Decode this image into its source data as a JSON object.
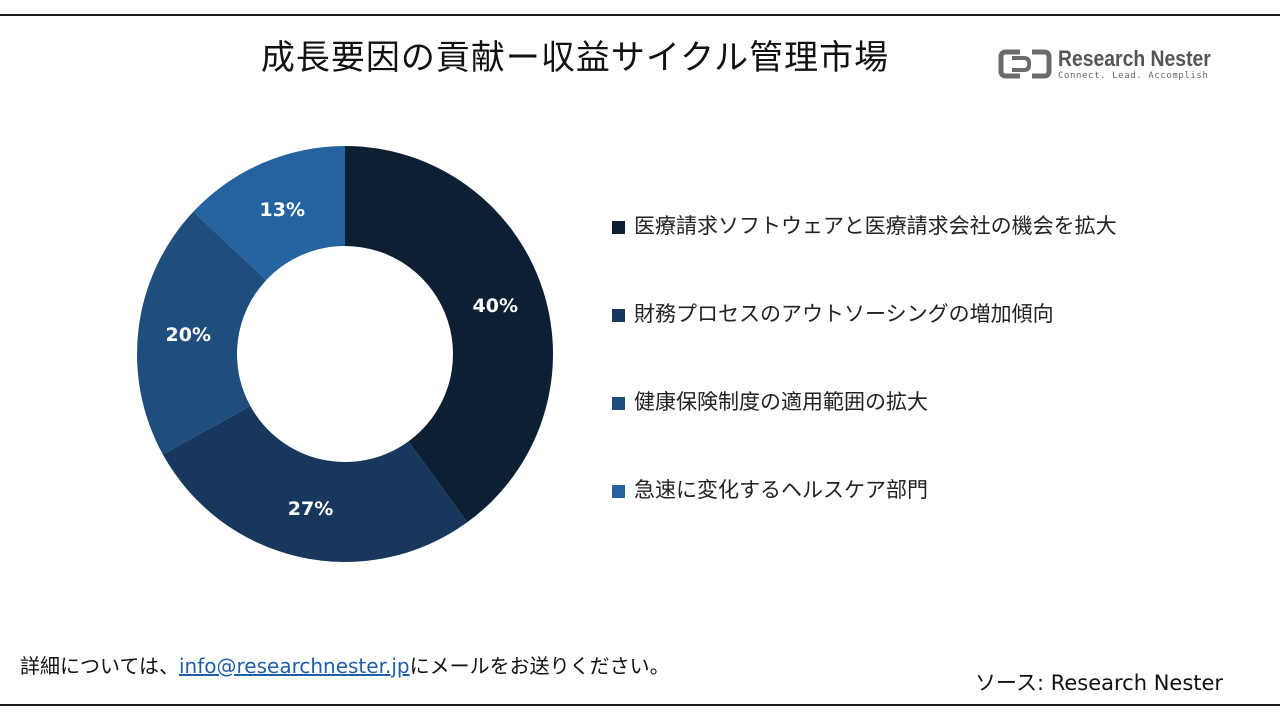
{
  "title": "成長要因の貢献ー収益サイクル管理市場",
  "logo": {
    "name": "Research Nester",
    "tagline": "Connect. Lead. Accomplish",
    "icon": "research-nester-logo-icon"
  },
  "colors": {
    "background": "#ffffff",
    "series": [
      "#0d1f33",
      "#17385c",
      "#1f4d7c",
      "#2463a0"
    ]
  },
  "chart_data": {
    "type": "pie",
    "donut": true,
    "categories": [
      "医療請求ソフトウェアと医療請求会社の機会を拡大",
      "財務プロセスのアウトソーシングの増加傾向",
      "健康保険制度の適用範囲の拡大",
      "急速に変化するヘルスケア部門"
    ],
    "values": [
      40,
      27,
      20,
      13
    ],
    "labels": [
      "40%",
      "27%",
      "20%",
      "13%"
    ],
    "title": "成長要因の貢献ー収益サイクル管理市場",
    "legend": "right"
  },
  "footer": {
    "prefix": "詳細については、",
    "email": "info@researchnester.jp",
    "suffix": "にメールをお送りください。"
  },
  "source": "ソース: Research Nester"
}
